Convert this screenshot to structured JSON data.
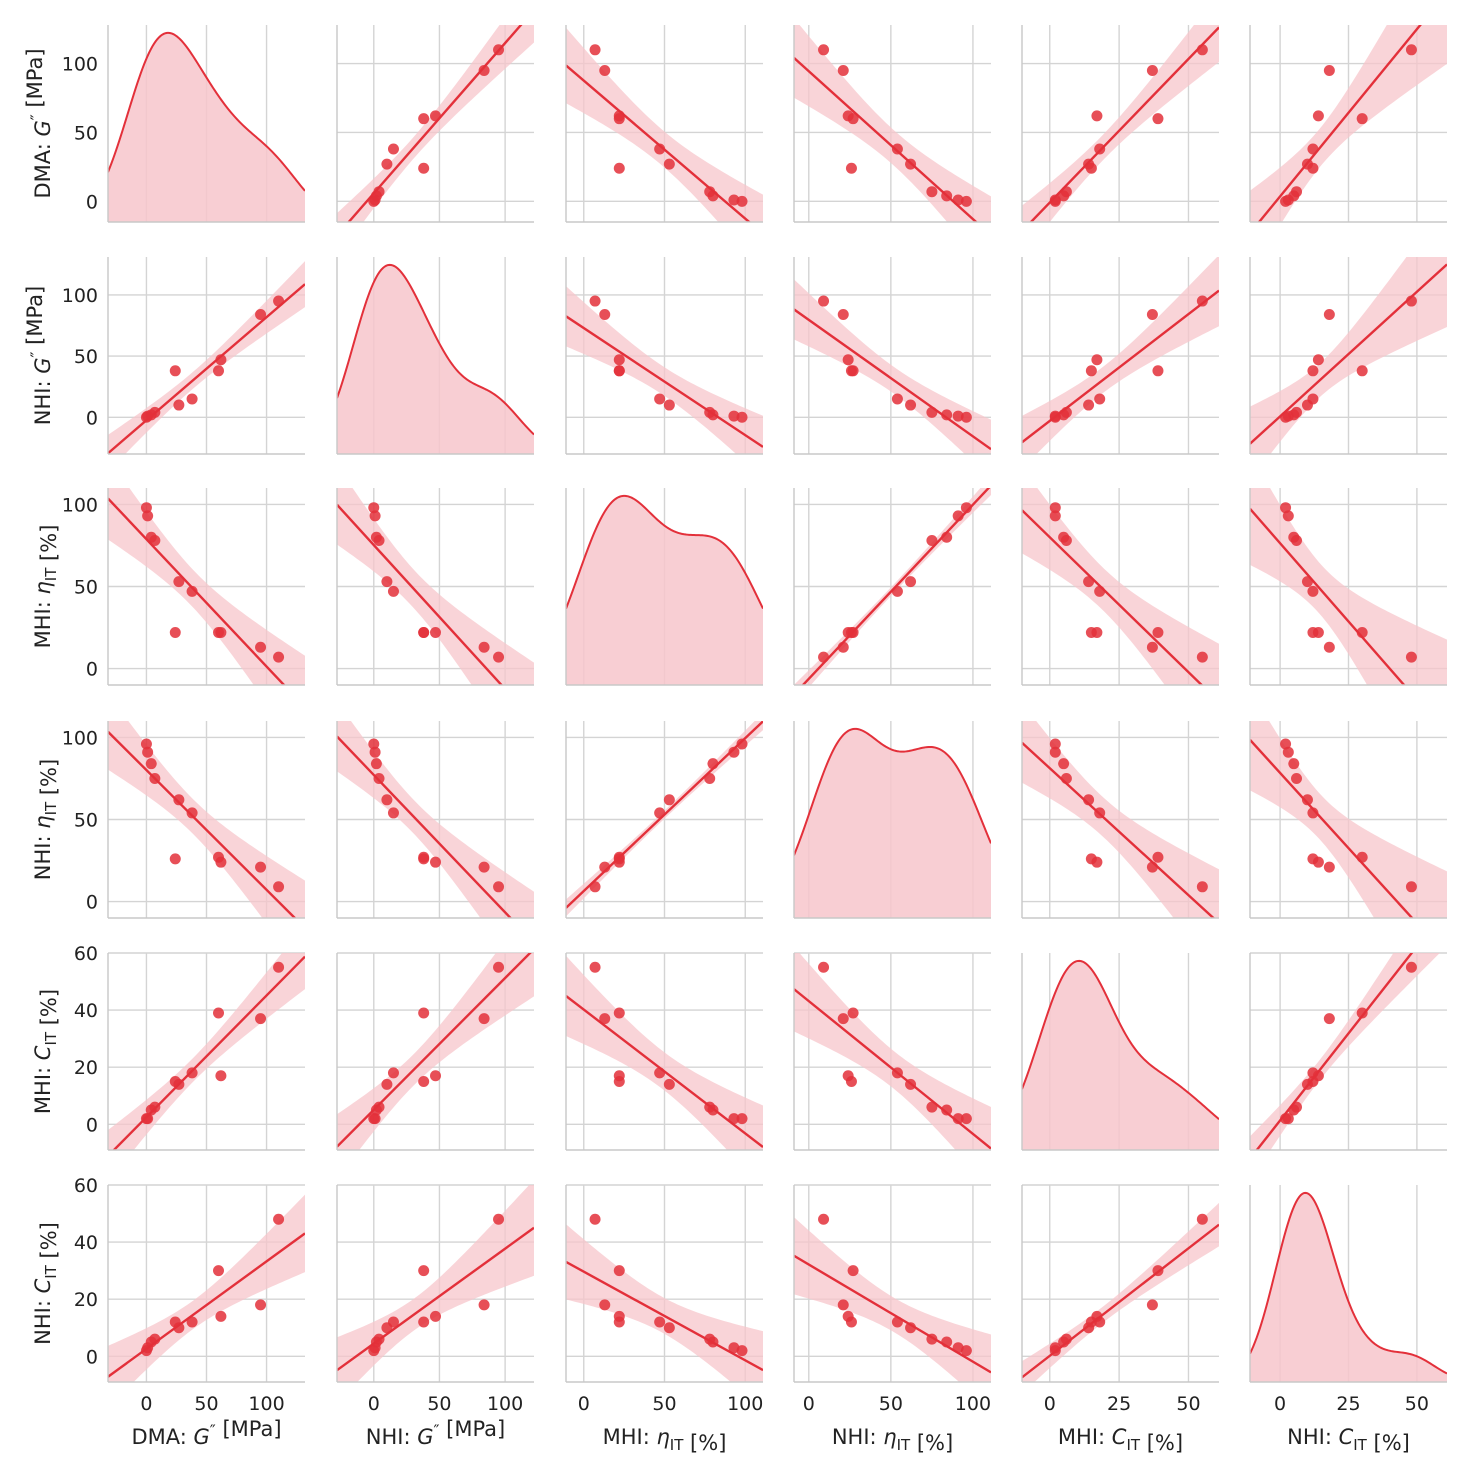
{
  "chart_data": {
    "type": "scatter",
    "title": "",
    "layout": "pairplot-matrix",
    "accent_color": "#e3303a",
    "band_color": "#f7c6cb",
    "grid_color": "#d4d4d4",
    "variables": [
      {
        "key": "dma_g",
        "prefix": "DMA: ",
        "sym": "G",
        "sup": "″",
        "sub": "",
        "unit": " [MPa]",
        "ylim": [
          -15,
          128
        ],
        "xlim": [
          -32,
          132
        ],
        "ticks": [
          0,
          50,
          100
        ],
        "xticks": [
          0,
          50,
          100
        ]
      },
      {
        "key": "nhi_g",
        "prefix": "NHI: ",
        "sym": "G",
        "sup": "″",
        "sub": "",
        "unit": " [MPa]",
        "ylim": [
          -30,
          131
        ],
        "xlim": [
          -28,
          122
        ],
        "ticks": [
          0,
          50,
          100
        ],
        "xticks": [
          0,
          50,
          100
        ]
      },
      {
        "key": "mhi_eta",
        "prefix": "MHI: ",
        "sym": "η",
        "sup": "",
        "sub": "IT",
        "unit": " [%]",
        "ylim": [
          -10,
          110
        ],
        "xlim": [
          -11,
          111
        ],
        "ticks": [
          0,
          50,
          100
        ],
        "xticks": [
          0,
          50,
          100
        ]
      },
      {
        "key": "nhi_eta",
        "prefix": "NHI: ",
        "sym": "η",
        "sup": "",
        "sub": "IT",
        "unit": " [%]",
        "ylim": [
          -10,
          110
        ],
        "xlim": [
          -9,
          111
        ],
        "ticks": [
          0,
          50,
          100
        ],
        "xticks": [
          0,
          50,
          100
        ]
      },
      {
        "key": "mhi_c",
        "prefix": "MHI: ",
        "sym": "C",
        "sup": "",
        "sub": "IT",
        "unit": " [%]",
        "ylim": [
          -9,
          60
        ],
        "xlim": [
          -10,
          61
        ],
        "ticks": [
          0,
          20,
          40,
          60
        ],
        "xticks": [
          0,
          25,
          50
        ]
      },
      {
        "key": "nhi_c",
        "prefix": "NHI: ",
        "sym": "C",
        "sup": "",
        "sub": "IT",
        "unit": " [%]",
        "ylim": [
          -9,
          60
        ],
        "xlim": [
          -11,
          61
        ],
        "ticks": [
          0,
          20,
          40,
          60
        ],
        "xticks": [
          0,
          25,
          50
        ]
      }
    ],
    "observations": [
      {
        "dma_g": 0,
        "nhi_g": 0,
        "mhi_eta": 98,
        "nhi_eta": 96,
        "mhi_c": 2,
        "nhi_c": 2
      },
      {
        "dma_g": 1,
        "nhi_g": 1,
        "mhi_eta": 93,
        "nhi_eta": 91,
        "mhi_c": 2,
        "nhi_c": 3
      },
      {
        "dma_g": 4,
        "nhi_g": 2,
        "mhi_eta": 80,
        "nhi_eta": 84,
        "mhi_c": 5,
        "nhi_c": 5
      },
      {
        "dma_g": 7,
        "nhi_g": 4,
        "mhi_eta": 78,
        "nhi_eta": 75,
        "mhi_c": 6,
        "nhi_c": 6
      },
      {
        "dma_g": 27,
        "nhi_g": 10,
        "mhi_eta": 53,
        "nhi_eta": 62,
        "mhi_c": 14,
        "nhi_c": 10
      },
      {
        "dma_g": 38,
        "nhi_g": 15,
        "mhi_eta": 47,
        "nhi_eta": 54,
        "mhi_c": 18,
        "nhi_c": 12
      },
      {
        "dma_g": 24,
        "nhi_g": 38,
        "mhi_eta": 22,
        "nhi_eta": 26,
        "mhi_c": 15,
        "nhi_c": 12
      },
      {
        "dma_g": 60,
        "nhi_g": 38,
        "mhi_eta": 22,
        "nhi_eta": 27,
        "mhi_c": 39,
        "nhi_c": 30
      },
      {
        "dma_g": 62,
        "nhi_g": 47,
        "mhi_eta": 22,
        "nhi_eta": 24,
        "mhi_c": 17,
        "nhi_c": 14
      },
      {
        "dma_g": 95,
        "nhi_g": 84,
        "mhi_eta": 13,
        "nhi_eta": 21,
        "mhi_c": 37,
        "nhi_c": 18
      },
      {
        "dma_g": 110,
        "nhi_g": 95,
        "mhi_eta": 7,
        "nhi_eta": 9,
        "mhi_c": 55,
        "nhi_c": 48
      }
    ],
    "diagonal": "kde",
    "off_diagonal": "regression with confidence band",
    "axis_labels": {
      "dma_g": "DMA: G″ [MPa]",
      "nhi_g": "NHI: G″ [MPa]",
      "mhi_eta": "MHI: ηIT [%]",
      "nhi_eta": "NHI: ηIT [%]",
      "mhi_c": "MHI: CIT [%]",
      "nhi_c": "NHI: CIT [%]"
    }
  }
}
